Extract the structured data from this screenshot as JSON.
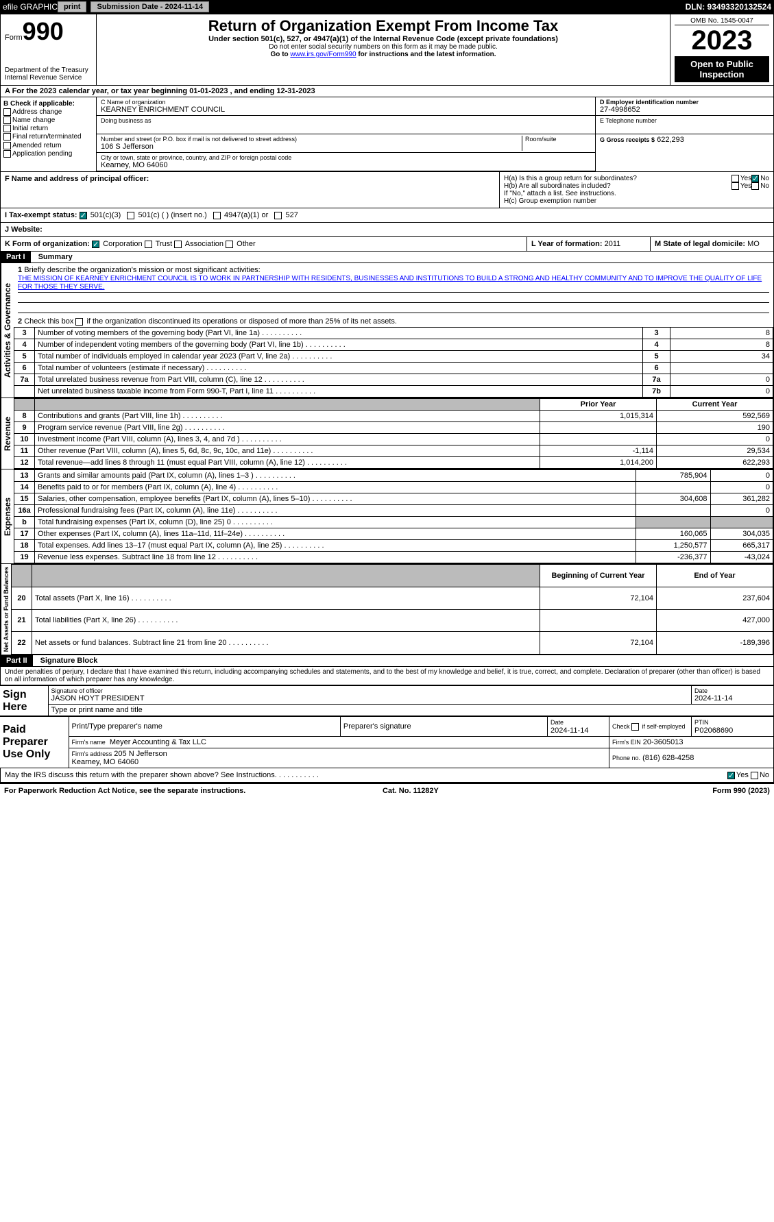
{
  "topbar": {
    "efile": "efile GRAPHIC",
    "print": "print",
    "submission": "Submission Date - 2024-11-14",
    "dln": "DLN: 93493320132524"
  },
  "header": {
    "form_label": "Form",
    "form_no": "990",
    "dept": "Department of the Treasury",
    "irs": "Internal Revenue Service",
    "title": "Return of Organization Exempt From Income Tax",
    "sub": "Under section 501(c), 527, or 4947(a)(1) of the Internal Revenue Code (except private foundations)",
    "ssn": "Do not enter social security numbers on this form as it may be made public.",
    "goto": "Go to",
    "link": "www.irs.gov/Form990",
    "goto2": "for instructions and the latest information.",
    "omb": "OMB No. 1545-0047",
    "year": "2023",
    "inspect": "Open to Public Inspection"
  },
  "row_a": "A  For the 2023 calendar year, or tax year beginning 01-01-2023    , and ending 12-31-2023",
  "box_b": {
    "label": "B Check if applicable:",
    "opts": [
      "Address change",
      "Name change",
      "Initial return",
      "Final return/terminated",
      "Amended return",
      "Application pending"
    ]
  },
  "box_c": {
    "name_lbl": "C Name of organization",
    "name": "KEARNEY ENRICHMENT COUNCIL",
    "dba_lbl": "Doing business as",
    "addr_lbl": "Number and street (or P.O. box if mail is not delivered to street address)",
    "room_lbl": "Room/suite",
    "addr": "106 S Jefferson",
    "city_lbl": "City or town, state or province, country, and ZIP or foreign postal code",
    "city": "Kearney, MO  64060"
  },
  "box_d": {
    "lbl": "D Employer identification number",
    "val": "27-4998652"
  },
  "box_e": {
    "lbl": "E Telephone number"
  },
  "box_g": {
    "lbl": "G Gross receipts $",
    "val": "622,293"
  },
  "box_f": {
    "lbl": "F  Name and address of principal officer:"
  },
  "box_h": {
    "ha": "H(a)  Is this a group return for subordinates?",
    "hb": "H(b)  Are all subordinates included?",
    "hb_note": "If \"No,\" attach a list. See instructions.",
    "hc": "H(c)  Group exemption number",
    "yes": "Yes",
    "no": "No"
  },
  "box_i": {
    "lbl": "I  Tax-exempt status:",
    "o1": "501(c)(3)",
    "o2": "501(c) (  ) (insert no.)",
    "o3": "4947(a)(1) or",
    "o4": "527"
  },
  "box_j": {
    "lbl": "J  Website:"
  },
  "box_k": {
    "lbl": "K Form of organization:",
    "o1": "Corporation",
    "o2": "Trust",
    "o3": "Association",
    "o4": "Other"
  },
  "box_l": {
    "lbl": "L Year of formation:",
    "val": "2011"
  },
  "box_m": {
    "lbl": "M State of legal domicile:",
    "val": "MO"
  },
  "part1": {
    "hdr": "Part I",
    "title": "Summary",
    "l1_lbl": "Briefly describe the organization's mission or most significant activities:",
    "l1_val": "THE MISSION OF KEARNEY ENRICHMENT COUNCIL IS TO WORK IN PARTNERSHIP WITH RESIDENTS, BUSINESSES AND INSTITUTIONS TO BUILD A STRONG AND HEALTHY COMMUNITY AND TO IMPROVE THE QUALITY OF LIFE FOR THOSE THEY SERVE.",
    "l2": "Check this box       if the organization discontinued its operations or disposed of more than 25% of its net assets.",
    "rows_ag": [
      {
        "n": "3",
        "t": "Number of voting members of the governing body (Part VI, line 1a)",
        "c": "3",
        "v": "8"
      },
      {
        "n": "4",
        "t": "Number of independent voting members of the governing body (Part VI, line 1b)",
        "c": "4",
        "v": "8"
      },
      {
        "n": "5",
        "t": "Total number of individuals employed in calendar year 2023 (Part V, line 2a)",
        "c": "5",
        "v": "34"
      },
      {
        "n": "6",
        "t": "Total number of volunteers (estimate if necessary)",
        "c": "6",
        "v": ""
      },
      {
        "n": "7a",
        "t": "Total unrelated business revenue from Part VIII, column (C), line 12",
        "c": "7a",
        "v": "0"
      },
      {
        "n": "",
        "t": "Net unrelated business taxable income from Form 990-T, Part I, line 11",
        "c": "7b",
        "v": "0"
      }
    ],
    "col_prior": "Prior Year",
    "col_curr": "Current Year",
    "rev": [
      {
        "n": "8",
        "t": "Contributions and grants (Part VIII, line 1h)",
        "p": "1,015,314",
        "c": "592,569"
      },
      {
        "n": "9",
        "t": "Program service revenue (Part VIII, line 2g)",
        "p": "",
        "c": "190"
      },
      {
        "n": "10",
        "t": "Investment income (Part VIII, column (A), lines 3, 4, and 7d )",
        "p": "",
        "c": "0"
      },
      {
        "n": "11",
        "t": "Other revenue (Part VIII, column (A), lines 5, 6d, 8c, 9c, 10c, and 11e)",
        "p": "-1,114",
        "c": "29,534"
      },
      {
        "n": "12",
        "t": "Total revenue—add lines 8 through 11 (must equal Part VIII, column (A), line 12)",
        "p": "1,014,200",
        "c": "622,293"
      }
    ],
    "exp": [
      {
        "n": "13",
        "t": "Grants and similar amounts paid (Part IX, column (A), lines 1–3 )",
        "p": "785,904",
        "c": "0"
      },
      {
        "n": "14",
        "t": "Benefits paid to or for members (Part IX, column (A), line 4)",
        "p": "",
        "c": "0"
      },
      {
        "n": "15",
        "t": "Salaries, other compensation, employee benefits (Part IX, column (A), lines 5–10)",
        "p": "304,608",
        "c": "361,282"
      },
      {
        "n": "16a",
        "t": "Professional fundraising fees (Part IX, column (A), line 11e)",
        "p": "",
        "c": "0"
      },
      {
        "n": "b",
        "t": "Total fundraising expenses (Part IX, column (D), line 25) 0",
        "p": "grey",
        "c": "grey"
      },
      {
        "n": "17",
        "t": "Other expenses (Part IX, column (A), lines 11a–11d, 11f–24e)",
        "p": "160,065",
        "c": "304,035"
      },
      {
        "n": "18",
        "t": "Total expenses. Add lines 13–17 (must equal Part IX, column (A), line 25)",
        "p": "1,250,577",
        "c": "665,317"
      },
      {
        "n": "19",
        "t": "Revenue less expenses. Subtract line 18 from line 12",
        "p": "-236,377",
        "c": "-43,024"
      }
    ],
    "col_beg": "Beginning of Current Year",
    "col_end": "End of Year",
    "net": [
      {
        "n": "20",
        "t": "Total assets (Part X, line 16)",
        "p": "72,104",
        "c": "237,604"
      },
      {
        "n": "21",
        "t": "Total liabilities (Part X, line 26)",
        "p": "",
        "c": "427,000"
      },
      {
        "n": "22",
        "t": "Net assets or fund balances. Subtract line 21 from line 20",
        "p": "72,104",
        "c": "-189,396"
      }
    ],
    "vtab_ag": "Activities & Governance",
    "vtab_rev": "Revenue",
    "vtab_exp": "Expenses",
    "vtab_net": "Net Assets or Fund Balances"
  },
  "part2": {
    "hdr": "Part II",
    "title": "Signature Block",
    "decl": "Under penalties of perjury, I declare that I have examined this return, including accompanying schedules and statements, and to the best of my knowledge and belief, it is true, correct, and complete. Declaration of preparer (other than officer) is based on all information of which preparer has any knowledge.",
    "sign_here": "Sign Here",
    "sig_officer": "Signature of officer",
    "officer_name": "JASON HOYT PRESIDENT",
    "type_name": "Type or print name and title",
    "date": "Date",
    "date_val": "2024-11-14",
    "paid": "Paid Preparer Use Only",
    "prep_name_lbl": "Print/Type preparer's name",
    "prep_sig_lbl": "Preparer's signature",
    "check_self": "Check        if self-employed",
    "ptin_lbl": "PTIN",
    "ptin": "P02068690",
    "firm_name_lbl": "Firm's name",
    "firm_name": "Meyer Accounting & Tax LLC",
    "firm_ein_lbl": "Firm's EIN",
    "firm_ein": "20-3605013",
    "firm_addr_lbl": "Firm's address",
    "firm_addr": "205 N Jefferson",
    "firm_city": "Kearney, MO  64060",
    "phone_lbl": "Phone no.",
    "phone": "(816) 628-4258",
    "discuss": "May the IRS discuss this return with the preparer shown above? See Instructions."
  },
  "footer": {
    "pra": "For Paperwork Reduction Act Notice, see the separate instructions.",
    "cat": "Cat. No. 11282Y",
    "form": "Form 990 (2023)"
  }
}
